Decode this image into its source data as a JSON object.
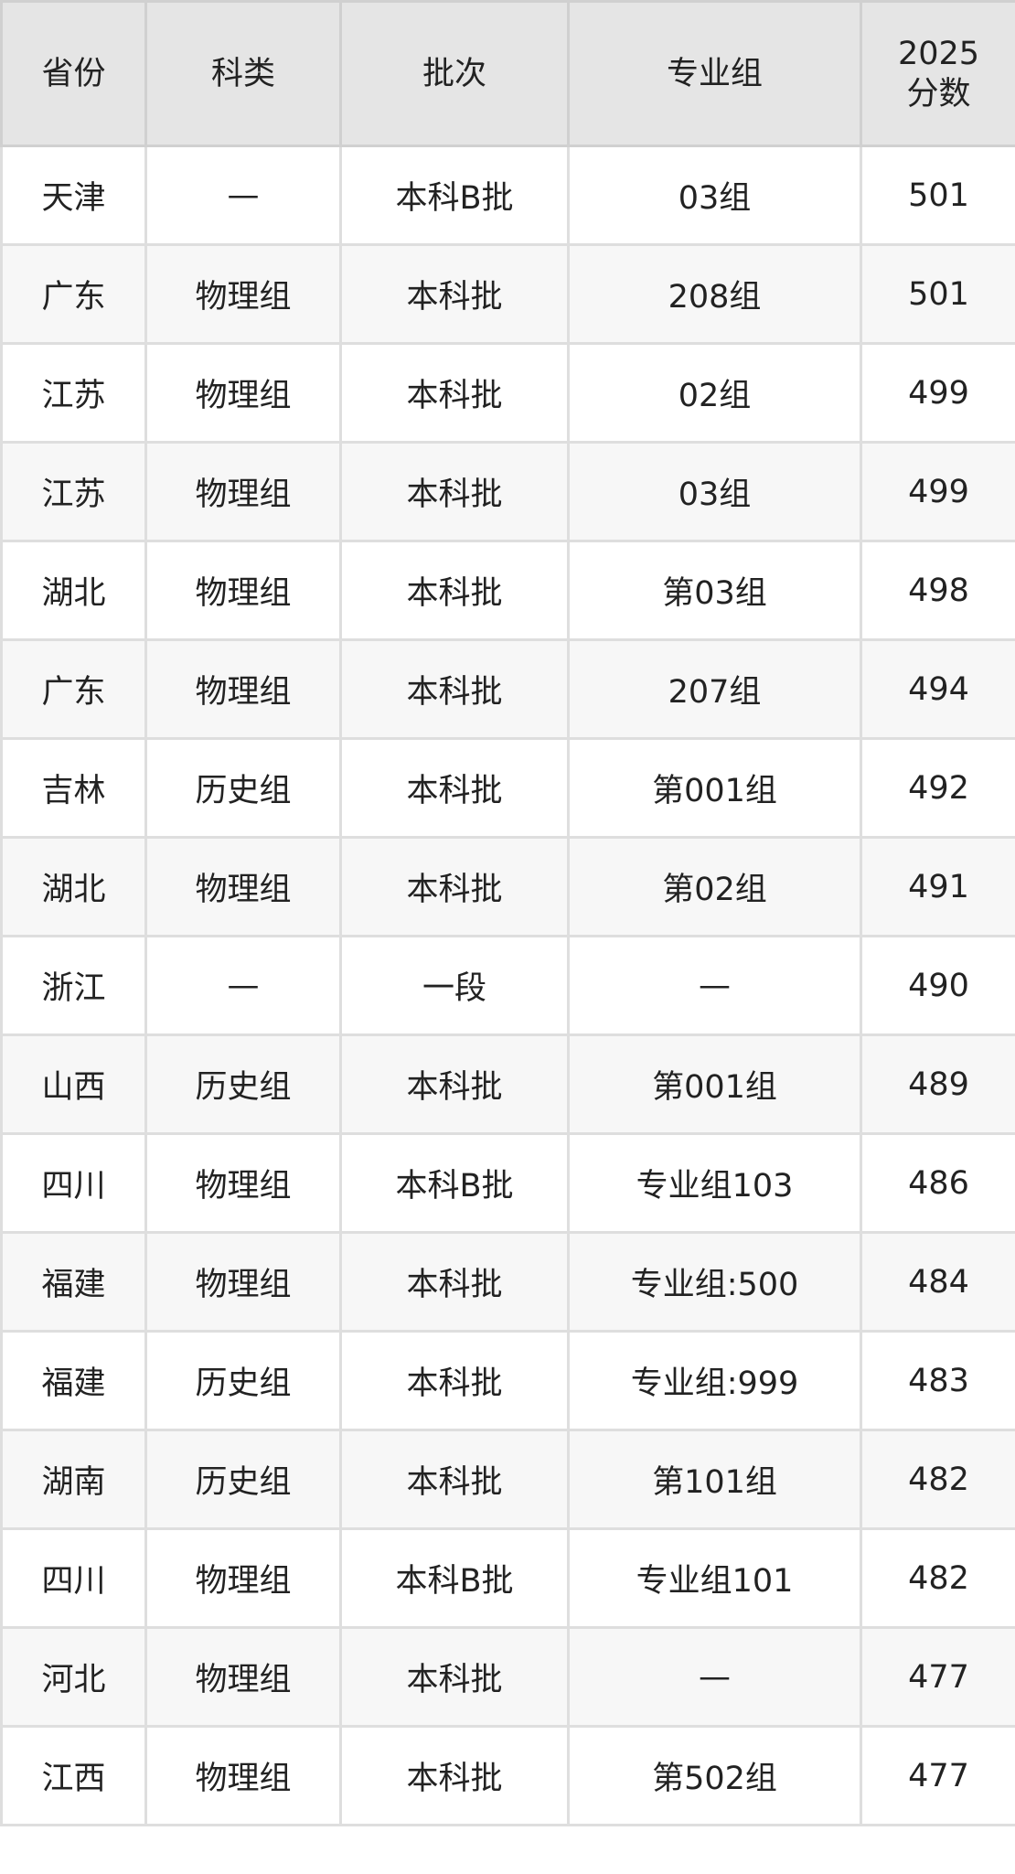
{
  "table": {
    "headers": [
      "省份",
      "科类",
      "批次",
      "专业组",
      "2025\n分数"
    ],
    "rows": [
      [
        "天津",
        "—",
        "本科B批",
        "03组",
        "501"
      ],
      [
        "广东",
        "物理组",
        "本科批",
        "208组",
        "501"
      ],
      [
        "江苏",
        "物理组",
        "本科批",
        "02组",
        "499"
      ],
      [
        "江苏",
        "物理组",
        "本科批",
        "03组",
        "499"
      ],
      [
        "湖北",
        "物理组",
        "本科批",
        "第03组",
        "498"
      ],
      [
        "广东",
        "物理组",
        "本科批",
        "207组",
        "494"
      ],
      [
        "吉林",
        "历史组",
        "本科批",
        "第001组",
        "492"
      ],
      [
        "湖北",
        "物理组",
        "本科批",
        "第02组",
        "491"
      ],
      [
        "浙江",
        "—",
        "一段",
        "—",
        "490"
      ],
      [
        "山西",
        "历史组",
        "本科批",
        "第001组",
        "489"
      ],
      [
        "四川",
        "物理组",
        "本科B批",
        "专业组103",
        "486"
      ],
      [
        "福建",
        "物理组",
        "本科批",
        "专业组:500",
        "484"
      ],
      [
        "福建",
        "历史组",
        "本科批",
        "专业组:999",
        "483"
      ],
      [
        "湖南",
        "历史组",
        "本科批",
        "第101组",
        "482"
      ],
      [
        "四川",
        "物理组",
        "本科B批",
        "专业组101",
        "482"
      ],
      [
        "河北",
        "物理组",
        "本科批",
        "—",
        "477"
      ],
      [
        "江西",
        "物理组",
        "本科批",
        "第502组",
        "477"
      ]
    ]
  }
}
